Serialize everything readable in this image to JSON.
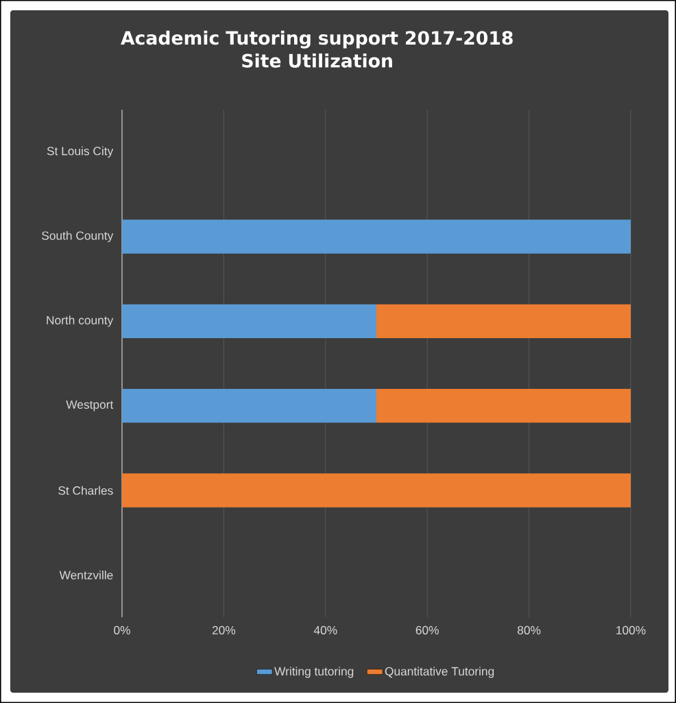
{
  "chart_data": {
    "type": "bar",
    "orientation": "horizontal",
    "stacked": true,
    "title": "Academic Tutoring support 2017-2018\nSite Utilization",
    "categories": [
      "St Louis City",
      "South County",
      "North county",
      "Westport",
      "St Charles",
      "Wentzville"
    ],
    "series": [
      {
        "name": "Writing tutoring",
        "color": "#5b9bd5",
        "values": [
          null,
          100,
          50,
          50,
          null,
          null
        ]
      },
      {
        "name": "Quantitative Tutoring",
        "color": "#ed7d31",
        "values": [
          null,
          null,
          50,
          50,
          100,
          null
        ]
      }
    ],
    "xlim": [
      0,
      100
    ],
    "xticks": [
      {
        "value": 0,
        "label": "0%"
      },
      {
        "value": 20,
        "label": "20%"
      },
      {
        "value": 40,
        "label": "40%"
      },
      {
        "value": 60,
        "label": "60%"
      },
      {
        "value": 80,
        "label": "80%"
      },
      {
        "value": 100,
        "label": "100%"
      }
    ],
    "grid": "x",
    "legend": "bottom"
  }
}
